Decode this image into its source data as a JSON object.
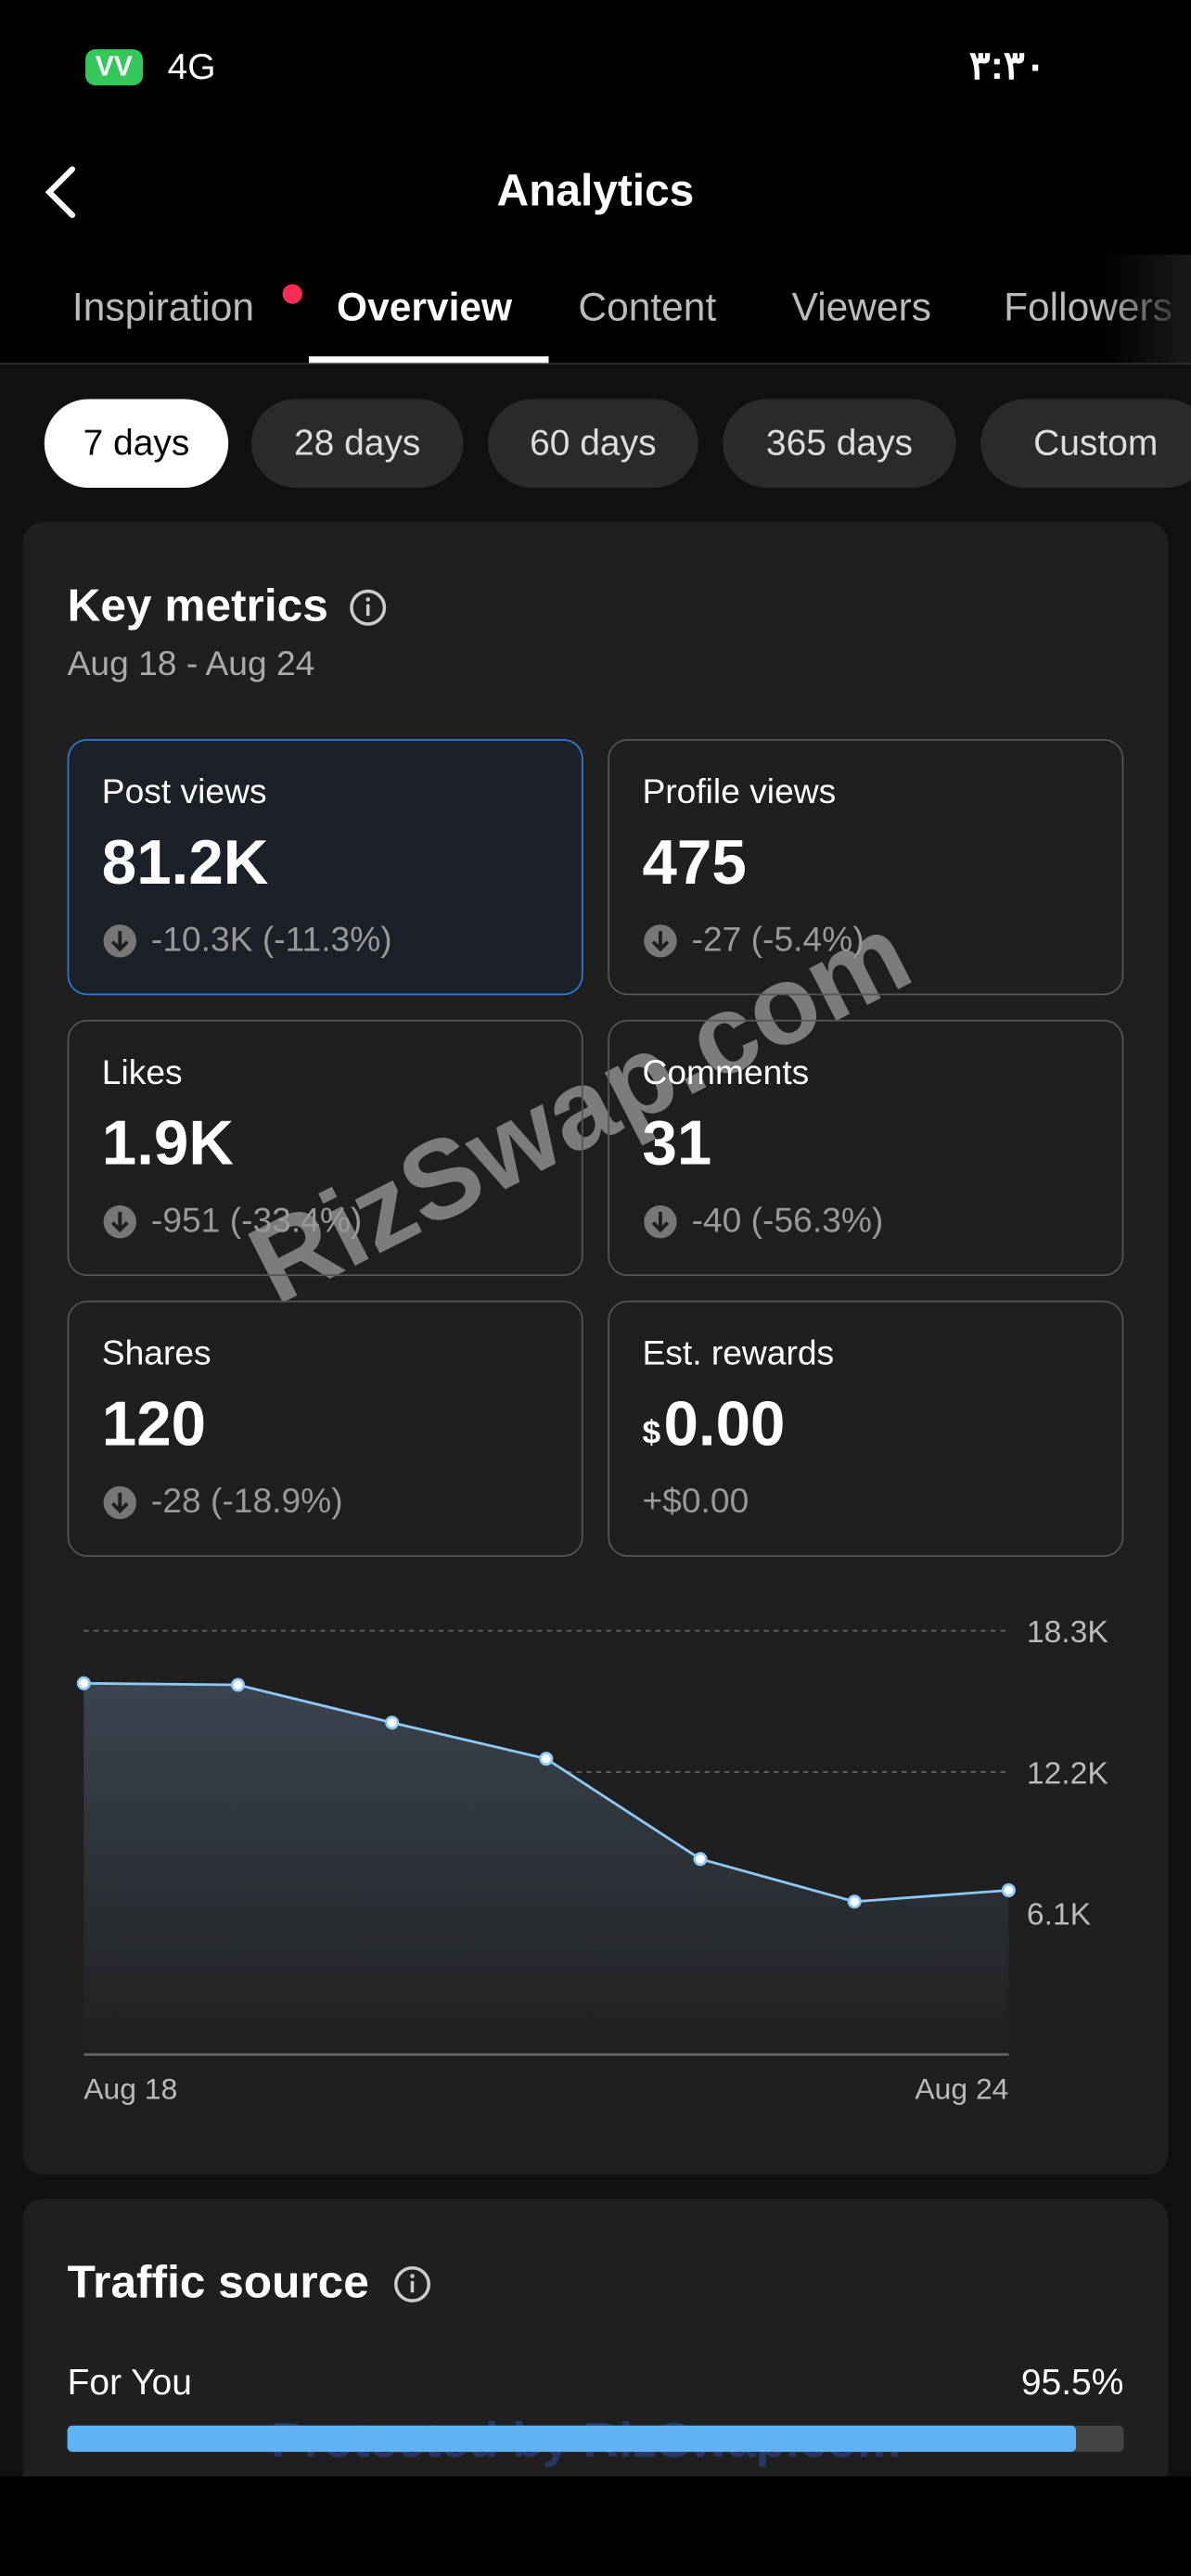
{
  "status_bar": {
    "battery": "VV",
    "network": "4G",
    "time": "۳:۳۰"
  },
  "header": {
    "title": "Analytics"
  },
  "tabs": [
    "Inspiration",
    "Overview",
    "Content",
    "Viewers",
    "Followers"
  ],
  "ranges": [
    "7 days",
    "28 days",
    "60 days",
    "365 days",
    "Custom"
  ],
  "key_metrics": {
    "title": "Key metrics",
    "date_range": "Aug 18 - Aug 24",
    "cards": [
      {
        "label": "Post views",
        "value": "81.2K",
        "change": "-10.3K (-11.3%)"
      },
      {
        "label": "Profile views",
        "value": "475",
        "change": "-27 (-5.4%)"
      },
      {
        "label": "Likes",
        "value": "1.9K",
        "change": "-951 (-33.4%)"
      },
      {
        "label": "Comments",
        "value": "31",
        "change": "-40 (-56.3%)"
      },
      {
        "label": "Shares",
        "value": "120",
        "change": "-28 (-18.9%)"
      },
      {
        "label": "Est. rewards",
        "currency": "$",
        "value": "0.00",
        "change": "+$0.00"
      }
    ]
  },
  "chart_data": {
    "type": "area",
    "categories": [
      "Aug 18",
      null,
      null,
      null,
      null,
      null,
      "Aug 24"
    ],
    "values": [
      16030,
      15960,
      14330,
      12770,
      8440,
      6600,
      7090
    ],
    "color": "#8ec9f5",
    "ylim": [
      0,
      18300
    ],
    "yticks": [
      {
        "value": 6100,
        "label": "6.1K"
      },
      {
        "value": 12200,
        "label": "12.2K"
      },
      {
        "value": 18300,
        "label": "18.3K"
      }
    ],
    "grid": true
  },
  "traffic_source": {
    "title": "Traffic source",
    "xlim": [
      0,
      100
    ],
    "items": [
      {
        "label": "For You",
        "value": 95.5,
        "value_label": "95.5%"
      }
    ]
  },
  "watermarks": [
    "RizSwap.com",
    "Protected by RizSwap.com"
  ]
}
